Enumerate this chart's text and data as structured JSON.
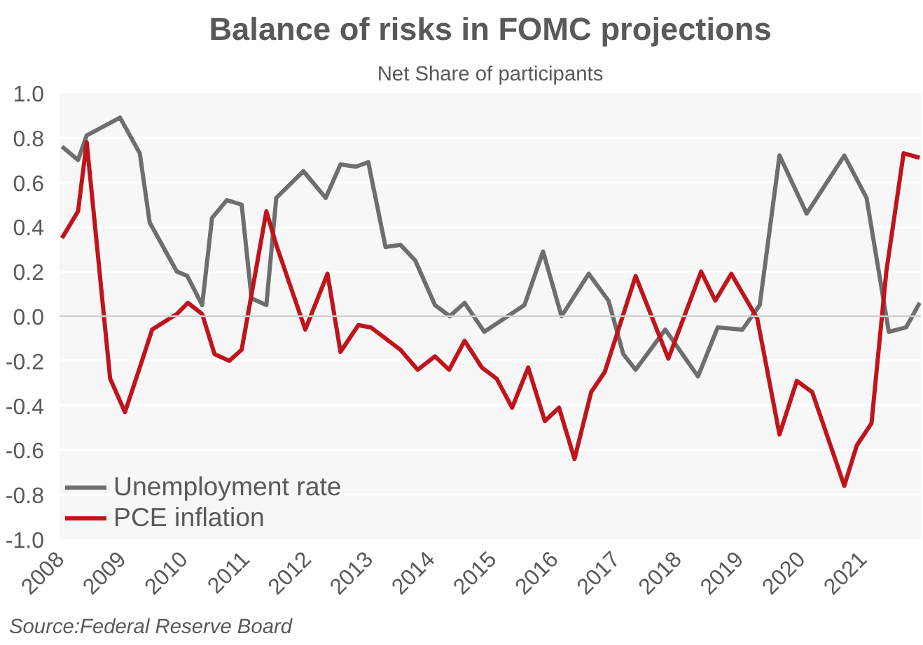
{
  "chart_data": {
    "type": "line",
    "title": "Balance of risks in FOMC projections",
    "subtitle": "Net Share of participants",
    "annotations": [
      "Source:Federal Reserve Board"
    ],
    "xlim": [
      2008,
      2021.95
    ],
    "xticks": [
      2008,
      2009,
      2010,
      2011,
      2012,
      2013,
      2014,
      2015,
      2016,
      2017,
      2018,
      2019,
      2020,
      2021
    ],
    "ylim": [
      -1.0,
      1.0
    ],
    "yticks": [
      {
        "value": -1.0,
        "label": "-1.0"
      },
      {
        "value": -0.8,
        "label": "-0.8"
      },
      {
        "value": -0.6,
        "label": "-0.6"
      },
      {
        "value": -0.4,
        "label": "-0.4"
      },
      {
        "value": -0.2,
        "label": "-0.2"
      },
      {
        "value": 0,
        "label": "0.0"
      },
      {
        "value": 0.2,
        "label": "0.2"
      },
      {
        "value": 0.4,
        "label": "0.4"
      },
      {
        "value": 0.6,
        "label": "0.6"
      },
      {
        "value": 0.8,
        "label": "0.8"
      },
      {
        "value": 1.0,
        "label": "1.0"
      }
    ],
    "grid": "y",
    "legend": "bottom left",
    "line_style": "solid",
    "marker": "none",
    "ref_lines": [
      {
        "axis": "y",
        "value": 0,
        "color": "#cfcfcf"
      }
    ],
    "series": [
      {
        "name": "Unemployment rate",
        "color": "#6e6e6e",
        "x": [
          2008.04,
          2008.3,
          2008.44,
          2008.98,
          2009.3,
          2009.46,
          2009.9,
          2010.07,
          2010.31,
          2010.47,
          2010.71,
          2010.95,
          2011.11,
          2011.35,
          2011.51,
          2011.95,
          2012.31,
          2012.55,
          2012.8,
          2013.0,
          2013.28,
          2013.52,
          2013.76,
          2014.08,
          2014.32,
          2014.56,
          2014.88,
          2015.53,
          2015.83,
          2016.13,
          2016.57,
          2016.89,
          2017.13,
          2017.33,
          2017.81,
          2018.34,
          2018.66,
          2019.06,
          2019.34,
          2019.66,
          2020.1,
          2020.71,
          2021.07,
          2021.43,
          2021.71,
          2021.93
        ],
        "values": [
          0.76,
          0.7,
          0.81,
          0.89,
          0.73,
          0.42,
          0.2,
          0.18,
          0.05,
          0.44,
          0.52,
          0.5,
          0.08,
          0.05,
          0.53,
          0.65,
          0.53,
          0.68,
          0.67,
          0.69,
          0.31,
          0.32,
          0.25,
          0.05,
          0.0,
          0.06,
          -0.07,
          0.05,
          0.29,
          0.0,
          0.19,
          0.07,
          -0.17,
          -0.24,
          -0.06,
          -0.27,
          -0.05,
          -0.06,
          0.05,
          0.72,
          0.46,
          0.72,
          0.53,
          -0.07,
          -0.05,
          0.06
        ]
      },
      {
        "name": "PCE inflation",
        "color": "#c0141c",
        "x": [
          2008.04,
          2008.3,
          2008.44,
          2008.82,
          2009.06,
          2009.3,
          2009.5,
          2009.9,
          2010.08,
          2010.31,
          2010.51,
          2010.75,
          2010.95,
          2011.35,
          2011.51,
          2011.98,
          2012.34,
          2012.55,
          2012.84,
          2013.04,
          2013.52,
          2013.8,
          2014.08,
          2014.31,
          2014.56,
          2014.84,
          2015.08,
          2015.33,
          2015.59,
          2015.86,
          2016.09,
          2016.34,
          2016.61,
          2016.83,
          2017.33,
          2017.86,
          2018.39,
          2018.62,
          2018.88,
          2019.3,
          2019.66,
          2019.94,
          2020.19,
          2020.71,
          2020.91,
          2021.15,
          2021.39,
          2021.67,
          2021.93
        ],
        "values": [
          0.35,
          0.47,
          0.78,
          -0.28,
          -0.43,
          -0.23,
          -0.06,
          0.01,
          0.06,
          0.01,
          -0.17,
          -0.2,
          -0.15,
          0.47,
          0.32,
          -0.06,
          0.19,
          -0.16,
          -0.04,
          -0.05,
          -0.15,
          -0.24,
          -0.18,
          -0.24,
          -0.11,
          -0.23,
          -0.28,
          -0.41,
          -0.23,
          -0.47,
          -0.41,
          -0.64,
          -0.34,
          -0.25,
          0.18,
          -0.19,
          0.2,
          0.07,
          0.19,
          -0.01,
          -0.53,
          -0.29,
          -0.34,
          -0.76,
          -0.58,
          -0.48,
          0.2,
          0.73,
          0.71
        ]
      }
    ]
  }
}
